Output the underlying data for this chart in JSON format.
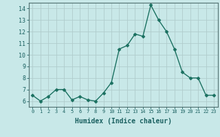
{
  "x": [
    0,
    1,
    2,
    3,
    4,
    5,
    6,
    7,
    8,
    9,
    10,
    11,
    12,
    13,
    14,
    15,
    16,
    17,
    18,
    19,
    20,
    21,
    22,
    23
  ],
  "y": [
    6.5,
    6.0,
    6.4,
    7.0,
    7.0,
    6.1,
    6.4,
    6.1,
    6.0,
    6.7,
    7.6,
    10.5,
    10.8,
    11.8,
    11.6,
    14.3,
    13.0,
    12.0,
    10.5,
    8.5,
    8.0,
    8.0,
    6.5,
    6.5
  ],
  "line_color": "#1a7060",
  "marker": "D",
  "marker_size": 2.5,
  "bg_color": "#c8e8e8",
  "grid_color": "#b0cccc",
  "xlabel": "Humidex (Indice chaleur)",
  "xlim": [
    -0.5,
    23.5
  ],
  "ylim": [
    5.5,
    14.5
  ],
  "yticks": [
    6,
    7,
    8,
    9,
    10,
    11,
    12,
    13,
    14
  ],
  "xticks": [
    0,
    1,
    2,
    3,
    4,
    5,
    6,
    7,
    8,
    9,
    10,
    11,
    12,
    13,
    14,
    15,
    16,
    17,
    18,
    19,
    20,
    21,
    22,
    23
  ],
  "tick_color": "#1a6060",
  "xlabel_fontsize": 7,
  "tick_fontsize_x": 5,
  "tick_fontsize_y": 6,
  "axis_color": "#507070",
  "line_width": 1.0
}
